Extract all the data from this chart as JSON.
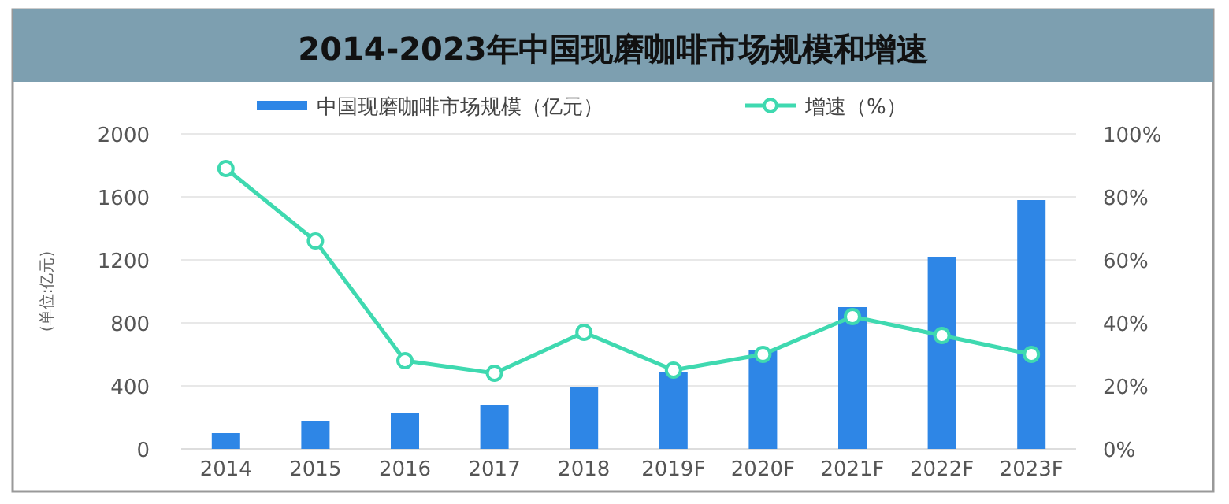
{
  "chart_data": {
    "type": "bar",
    "title": "2014-2023年中国现磨咖啡市场规模和增速",
    "ylabel": "(单位:亿元)",
    "categories": [
      "2014",
      "2015",
      "2016",
      "2017",
      "2018",
      "2019F",
      "2020F",
      "2021F",
      "2022F",
      "2023F"
    ],
    "series": [
      {
        "name": "中国现磨咖啡市场规模（亿元）",
        "color": "#2e86e6",
        "values": [
          100,
          180,
          230,
          280,
          390,
          490,
          630,
          900,
          1220,
          1580
        ]
      },
      {
        "name": "增速（%）",
        "type": "line",
        "axis": "y2",
        "color": "#3fd9b0",
        "marker": "circle",
        "line_style": "solid",
        "values": [
          89,
          66,
          28,
          24,
          37,
          25,
          30,
          42,
          36,
          30
        ]
      }
    ],
    "ylim": [
      0,
      2000
    ],
    "yticks": [
      0,
      400,
      800,
      1200,
      1600,
      2000
    ],
    "y2lim": [
      0,
      100
    ],
    "y2ticks": [
      {
        "value": 0,
        "label": "0%"
      },
      {
        "value": 20,
        "label": "20%"
      },
      {
        "value": 40,
        "label": "40%"
      },
      {
        "value": 60,
        "label": "60%"
      },
      {
        "value": 80,
        "label": "80%"
      },
      {
        "value": 100,
        "label": "100%"
      }
    ],
    "grid": "y",
    "legend": "top"
  }
}
